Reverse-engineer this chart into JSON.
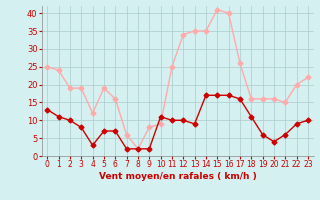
{
  "x": [
    0,
    1,
    2,
    3,
    4,
    5,
    6,
    7,
    8,
    9,
    10,
    11,
    12,
    13,
    14,
    15,
    16,
    17,
    18,
    19,
    20,
    21,
    22,
    23
  ],
  "avg_wind": [
    13,
    11,
    10,
    8,
    3,
    7,
    7,
    2,
    2,
    2,
    11,
    10,
    10,
    9,
    17,
    17,
    17,
    16,
    11,
    6,
    4,
    6,
    9,
    10
  ],
  "gust_wind": [
    25,
    24,
    19,
    19,
    12,
    19,
    16,
    6,
    2,
    8,
    9,
    25,
    34,
    35,
    35,
    41,
    40,
    26,
    16,
    16,
    16,
    15,
    20,
    22
  ],
  "avg_color": "#cc0000",
  "gust_color": "#ffaaaa",
  "bg_color": "#d5f0f0",
  "grid_color": "#aacccc",
  "xlabel": "Vent moyen/en rafales ( km/h )",
  "xlabel_color": "#cc0000",
  "xlabel_fontsize": 6.5,
  "tick_color": "#cc0000",
  "ytick_fontsize": 6,
  "xtick_fontsize": 5.5,
  "ylim": [
    0,
    42
  ],
  "yticks": [
    0,
    5,
    10,
    15,
    20,
    25,
    30,
    35,
    40
  ],
  "marker_size": 2.5,
  "line_width": 1.0
}
